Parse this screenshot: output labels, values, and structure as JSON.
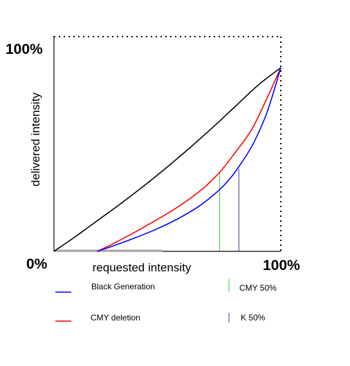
{
  "chart_data": {
    "type": "line",
    "title": "",
    "xlabel": "requested intensity",
    "ylabel": "delivered intensity",
    "x_ticks": [
      "0%",
      "100%"
    ],
    "y_ticks": [
      "100%"
    ],
    "xlim": [
      0,
      100
    ],
    "ylim": [
      0,
      100
    ],
    "grid": false,
    "series": [
      {
        "name": "",
        "color": "#000000",
        "x": [
          0,
          10,
          20,
          30,
          40,
          50,
          60,
          70,
          80,
          90,
          100
        ],
        "y": [
          0,
          8.5,
          17.5,
          26.5,
          36,
          46,
          56.5,
          67.5,
          79,
          90.5,
          100
        ]
      },
      {
        "name": "CMY deletion",
        "color": "#ff0000",
        "x": [
          19,
          25,
          35,
          45,
          55,
          65,
          73,
          80,
          87,
          93,
          100
        ],
        "y": [
          0,
          3.5,
          10,
          17,
          24.5,
          33.5,
          43,
          54,
          66,
          81,
          100
        ]
      },
      {
        "name": "Black Generation",
        "color": "#0000ff",
        "x": [
          19,
          25,
          35,
          45,
          55,
          65,
          75,
          82,
          88,
          94,
          100
        ],
        "y": [
          0,
          2.5,
          7,
          12,
          18,
          25.5,
          36,
          47,
          59,
          76,
          100
        ]
      }
    ],
    "markers": [
      {
        "name": "CMY 50%",
        "color": "#33cc33",
        "x": 73,
        "y": 43
      },
      {
        "name": "K 50%",
        "color": "#3333aa",
        "x": 81.5,
        "y": 45
      }
    ],
    "baseline_segment": {
      "color": "#aaaaaa",
      "x": [
        0,
        48
      ]
    },
    "legend": [
      {
        "label": "Black Generation",
        "color": "#0000ff",
        "kind": "line"
      },
      {
        "label": "CMY deletion",
        "color": "#ff0000",
        "kind": "line"
      },
      {
        "label": "CMY 50%",
        "color": "#33cc33",
        "kind": "tick"
      },
      {
        "label": "K 50%",
        "color": "#3333aa",
        "kind": "tick"
      }
    ],
    "legend_placement": "bottom"
  }
}
